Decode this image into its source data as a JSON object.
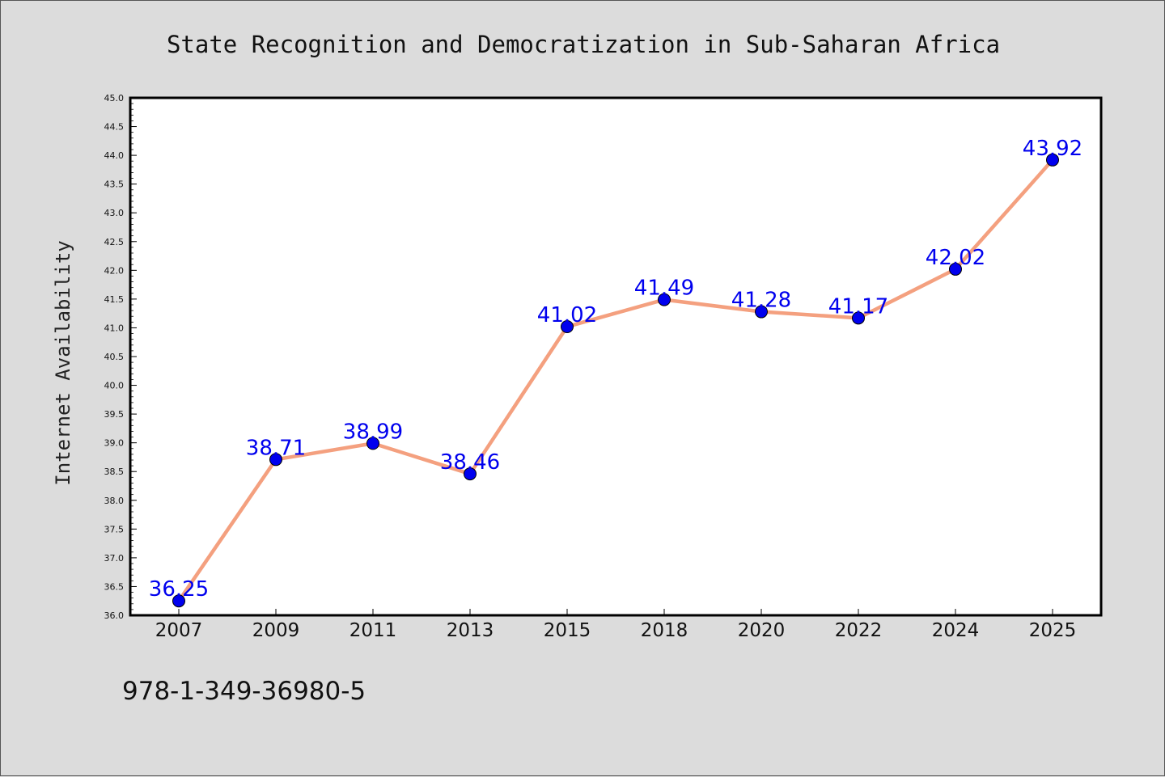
{
  "chart_data": {
    "type": "line",
    "title": "State Recognition and Democratization in Sub-Saharan Africa",
    "ylabel": "Internet Availability",
    "xlabel": "",
    "categories": [
      "2007",
      "2009",
      "2011",
      "2013",
      "2015",
      "2018",
      "2020",
      "2022",
      "2024",
      "2025"
    ],
    "values": [
      36.25,
      38.71,
      38.99,
      38.46,
      41.02,
      41.49,
      41.28,
      41.17,
      42.02,
      43.92
    ],
    "data_labels": [
      "36.25",
      "38.71",
      "38.99",
      "38.46",
      "41.02",
      "41.49",
      "41.28",
      "41.17",
      "42.02",
      "43.92"
    ],
    "ylim": [
      36.0,
      45.0
    ],
    "yticks": [
      "36.0",
      "36.5",
      "37.0",
      "37.5",
      "38.0",
      "38.5",
      "39.0",
      "39.5",
      "40.0",
      "40.5",
      "41.0",
      "41.5",
      "42.0",
      "42.5",
      "43.0",
      "43.5",
      "44.0",
      "44.5",
      "45.0"
    ],
    "grid": false,
    "legend": "none",
    "colors": {
      "line": "#f4a07f",
      "marker": "#0000ee",
      "label": "#0000ee",
      "plot_bg": "#ffffff",
      "page_bg": "#dcdcdc"
    }
  },
  "footer": {
    "isbn": "978-1-349-36980-5"
  }
}
